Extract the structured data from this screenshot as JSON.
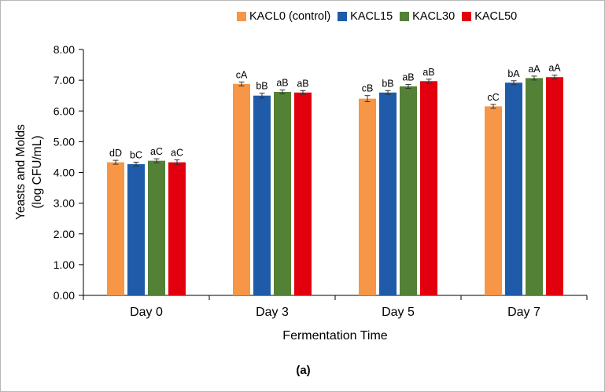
{
  "figure": {
    "caption": "(a)"
  },
  "chart_data": {
    "type": "bar",
    "title": "",
    "categories": [
      "Day 0",
      "Day 3",
      "Day 5",
      "Day 7"
    ],
    "series": [
      {
        "name": "KACL0 (control)",
        "color": "#F79646",
        "values": [
          4.33,
          6.88,
          6.4,
          6.15
        ],
        "errors": [
          0.05,
          0.06,
          0.1,
          0.05
        ],
        "labels": [
          "dD",
          "cA",
          "cB",
          "cC"
        ]
      },
      {
        "name": "KACL15",
        "color": "#1F5BA8",
        "values": [
          4.27,
          6.5,
          6.6,
          6.92
        ],
        "errors": [
          0.05,
          0.08,
          0.05,
          0.06
        ],
        "labels": [
          "bC",
          "bB",
          "bB",
          "bA"
        ]
      },
      {
        "name": "KACL30",
        "color": "#538135",
        "values": [
          4.38,
          6.62,
          6.8,
          7.07
        ],
        "errors": [
          0.06,
          0.05,
          0.05,
          0.05
        ],
        "labels": [
          "aC",
          "aB",
          "aB",
          "aA"
        ]
      },
      {
        "name": "KACL50",
        "color": "#E2000F",
        "values": [
          4.33,
          6.6,
          6.97,
          7.1
        ],
        "errors": [
          0.08,
          0.05,
          0.05,
          0.05
        ],
        "labels": [
          "aC",
          "aB",
          "aB",
          "aA"
        ]
      }
    ],
    "xlabel": "Fermentation Time",
    "ylabel_line1": "Yeasts and Molds",
    "ylabel_line2": "(log CFU/mL)",
    "ylim": [
      0,
      8
    ],
    "ytick_step": 1,
    "ytick_decimals": 2,
    "legend_position": "top",
    "grid": false,
    "error_bar_color": "#333333"
  }
}
